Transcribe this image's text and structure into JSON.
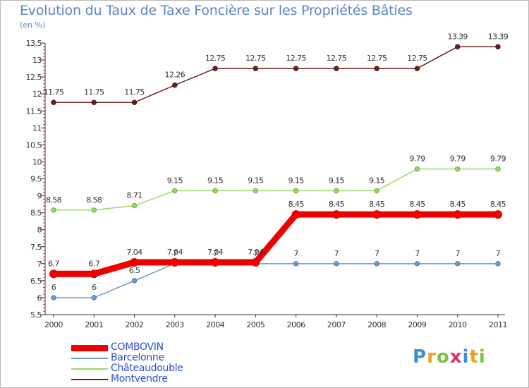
{
  "chart_data": {
    "type": "line",
    "title": "Evolution du Taux de Taxe Foncière sur les Propriétés Bâties",
    "unit_label": "(en %)",
    "xlabel": "",
    "ylabel": "",
    "ylim": [
      5.5,
      13.5
    ],
    "yticks": [
      5.5,
      6,
      6.5,
      7,
      7.5,
      8,
      8.5,
      9,
      9.5,
      10,
      10.5,
      11,
      11.5,
      12,
      12.5,
      13,
      13.5
    ],
    "categories": [
      "2000",
      "2001",
      "2002",
      "2003",
      "2004",
      "2005",
      "2006",
      "2007",
      "2008",
      "2009",
      "2010",
      "2011"
    ],
    "series": [
      {
        "name": "Montvendre",
        "color": "#6b2020",
        "values": [
          11.75,
          11.75,
          11.75,
          12.26,
          12.75,
          12.75,
          12.75,
          12.75,
          12.75,
          12.75,
          13.39,
          13.39
        ],
        "labels": [
          "11.75",
          "11.75",
          "11.75",
          "12.26",
          "12.75",
          "12.75",
          "12.75",
          "12.75",
          "12.75",
          "12.75",
          "13.39",
          "13.39"
        ]
      },
      {
        "name": "Châteaudouble",
        "color": "#9ad86a",
        "values": [
          8.58,
          8.58,
          8.71,
          9.15,
          9.15,
          9.15,
          9.15,
          9.15,
          9.15,
          9.79,
          9.79,
          9.79
        ],
        "labels": [
          "8.58",
          "8.58",
          "8.71",
          "9.15",
          "9.15",
          "9.15",
          "9.15",
          "9.15",
          "9.15",
          "9.79",
          "9.79",
          "9.79"
        ]
      },
      {
        "name": "Barcelonne",
        "color": "#6a9ccc",
        "values": [
          6,
          6,
          6.5,
          7,
          7,
          7,
          7,
          7,
          7,
          7,
          7,
          7
        ],
        "labels": [
          "6",
          "6",
          "6.5",
          "7",
          "7",
          "7",
          "7",
          "7",
          "7",
          "7",
          "7",
          "7"
        ]
      },
      {
        "name": "COMBOVIN",
        "color": "#ee0000",
        "values": [
          6.7,
          6.7,
          7.04,
          7.04,
          7.04,
          7.04,
          8.45,
          8.45,
          8.45,
          8.45,
          8.45,
          8.45
        ],
        "labels": [
          "6.7",
          "6.7",
          "7.04",
          "7.04",
          "7.04",
          "7.04",
          "8.45",
          "8.45",
          "8.45",
          "8.45",
          "8.45",
          "8.45"
        ]
      }
    ],
    "legend": [
      "COMBOVIN",
      "Barcelonne",
      "Châteaudouble",
      "Montvendre"
    ],
    "grid": false,
    "legend_position": "bottom-left"
  },
  "legend_colors": {
    "COMBOVIN": "#ee0000",
    "Barcelonne": "#6a9ccc",
    "Châteaudouble": "#9ad86a",
    "Montvendre": "#6b2020"
  },
  "brand": {
    "letters": [
      "P",
      "r",
      "o",
      "x",
      "i",
      "t",
      "i"
    ],
    "colors": [
      "#3a8fd6",
      "#f0a020",
      "#7cc242",
      "#e03070",
      "#3a8fd6",
      "#f0a020",
      "#7cc242"
    ]
  },
  "accent_color": "#5a86c8"
}
